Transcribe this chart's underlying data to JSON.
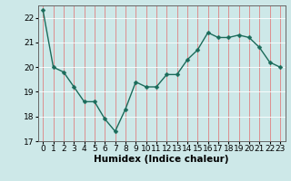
{
  "x": [
    0,
    1,
    2,
    3,
    4,
    5,
    6,
    7,
    8,
    9,
    10,
    11,
    12,
    13,
    14,
    15,
    16,
    17,
    18,
    19,
    20,
    21,
    22,
    23
  ],
  "y": [
    22.3,
    20.0,
    19.8,
    19.2,
    18.6,
    18.6,
    17.9,
    17.4,
    18.3,
    19.4,
    19.2,
    19.2,
    19.7,
    19.7,
    20.3,
    20.7,
    21.4,
    21.2,
    21.2,
    21.3,
    21.2,
    20.8,
    20.2,
    20.0
  ],
  "line_color": "#1a6b5a",
  "marker": "D",
  "marker_size": 2.5,
  "bg_color": "#cde8e8",
  "grid_color_x": "#e08080",
  "grid_color_y": "#ffffff",
  "xlabel": "Humidex (Indice chaleur)",
  "ylim": [
    17,
    22.5
  ],
  "xlim": [
    -0.5,
    23.5
  ],
  "yticks": [
    17,
    18,
    19,
    20,
    21,
    22
  ],
  "xticks": [
    0,
    1,
    2,
    3,
    4,
    5,
    6,
    7,
    8,
    9,
    10,
    11,
    12,
    13,
    14,
    15,
    16,
    17,
    18,
    19,
    20,
    21,
    22,
    23
  ],
  "xlabel_fontsize": 7.5,
  "tick_fontsize": 6.5,
  "line_width": 1.0
}
